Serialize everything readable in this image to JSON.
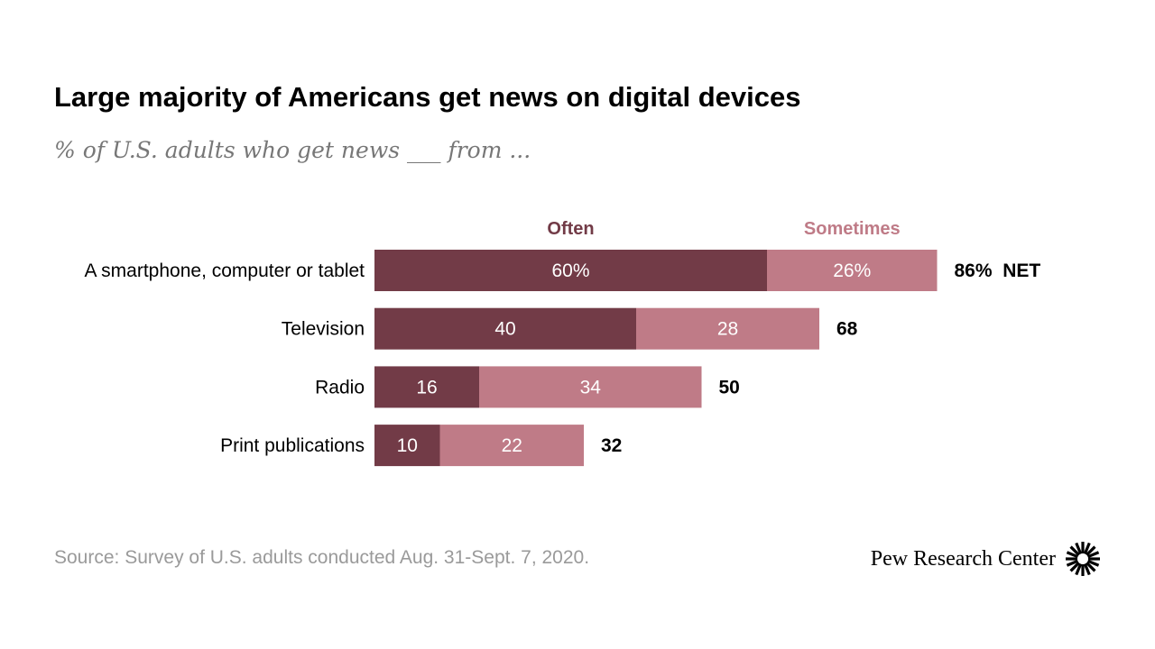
{
  "title": "Large majority of Americans get news on digital devices",
  "subtitle": "% of U.S. adults who get news ___ from ...",
  "source": "Source: Survey of U.S. adults conducted Aug. 31-Sept. 7, 2020.",
  "brand": {
    "name": "Pew Research Center",
    "icon": "pew-sunburst-icon"
  },
  "colors": {
    "often": "#723b47",
    "sometimes": "#bf7b87",
    "bar_text": "#ffffff",
    "net_text": "#000000"
  },
  "chart_data": {
    "type": "bar",
    "orientation": "horizontal",
    "stacked": true,
    "categories": [
      "A smartphone, computer or tablet",
      "Television",
      "Radio",
      "Print publications"
    ],
    "series": [
      {
        "name": "Often",
        "values": [
          60,
          40,
          16,
          10
        ],
        "labels": [
          "60%",
          "40",
          "16",
          "10"
        ]
      },
      {
        "name": "Sometimes",
        "values": [
          26,
          28,
          34,
          22
        ],
        "labels": [
          "26%",
          "28",
          "34",
          "22"
        ]
      }
    ],
    "net": {
      "values": [
        86,
        68,
        50,
        32
      ],
      "labels": [
        "86%",
        "68",
        "50",
        "32"
      ],
      "suffix": "NET"
    },
    "xlim": [
      0,
      100
    ],
    "grid": false,
    "legend": "top"
  }
}
